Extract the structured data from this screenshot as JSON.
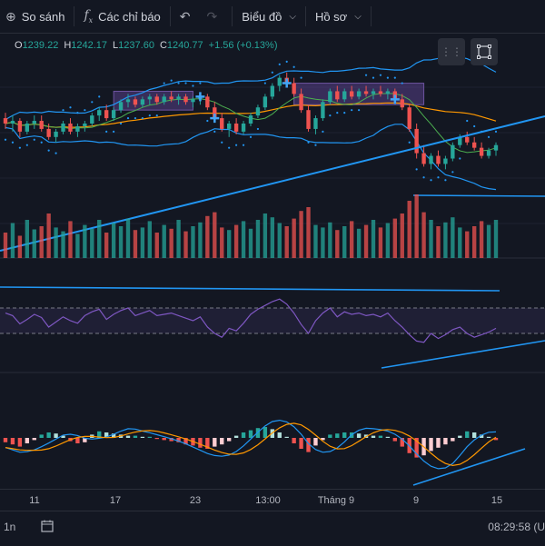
{
  "toolbar": {
    "compare_label": "So sánh",
    "compare_icon": "plus-circle-icon",
    "indicators_label": "Các chỉ báo",
    "indicators_icon": "fx-icon",
    "chart_label": "Biểu đồ",
    "profile_label": "Hồ sơ"
  },
  "ohlc": {
    "open_label": "O",
    "open": "1239.22",
    "high_label": "H",
    "high": "1242.17",
    "low_label": "L",
    "low": "1237.60",
    "close_label": "C",
    "close": "1240.77",
    "change": "+1.56 (+0.13%)"
  },
  "x_axis": [
    "11",
    "17",
    "23",
    "13:00",
    "Tháng 9",
    "9",
    "15"
  ],
  "bottom": {
    "interval": "1n",
    "time": "08:29:58 (U"
  },
  "colors": {
    "background": "#131722",
    "up": "#26a69a",
    "down": "#ef5350",
    "bollinger": "#2196f3",
    "ma_orange": "#ff9800",
    "ma_green": "#4caf50",
    "trendline": "#2196f3",
    "rsi": "#7e57c2",
    "sar": "#2196f3"
  },
  "chart_data": {
    "type": "candlestick",
    "candles": [
      [
        1251,
        1253,
        1247,
        1249
      ],
      [
        1249,
        1252,
        1246,
        1250
      ],
      [
        1250,
        1251,
        1244,
        1246
      ],
      [
        1246,
        1250,
        1245,
        1249
      ],
      [
        1249,
        1252,
        1247,
        1250
      ],
      [
        1250,
        1252,
        1246,
        1247
      ],
      [
        1247,
        1249,
        1243,
        1244
      ],
      [
        1244,
        1247,
        1242,
        1246
      ],
      [
        1246,
        1250,
        1245,
        1249
      ],
      [
        1249,
        1251,
        1245,
        1246
      ],
      [
        1246,
        1249,
        1244,
        1248
      ],
      [
        1248,
        1250,
        1246,
        1249
      ],
      [
        1249,
        1253,
        1248,
        1252
      ],
      [
        1252,
        1255,
        1250,
        1254
      ],
      [
        1254,
        1256,
        1250,
        1251
      ],
      [
        1251,
        1255,
        1250,
        1254
      ],
      [
        1254,
        1258,
        1253,
        1257
      ],
      [
        1257,
        1260,
        1255,
        1258
      ],
      [
        1258,
        1259,
        1255,
        1256
      ],
      [
        1256,
        1259,
        1255,
        1258
      ],
      [
        1258,
        1260,
        1256,
        1259
      ],
      [
        1259,
        1260,
        1256,
        1257
      ],
      [
        1257,
        1260,
        1256,
        1259
      ],
      [
        1259,
        1261,
        1257,
        1258
      ],
      [
        1258,
        1260,
        1256,
        1259
      ],
      [
        1259,
        1260,
        1256,
        1257
      ],
      [
        1257,
        1259,
        1255,
        1258
      ],
      [
        1258,
        1260,
        1256,
        1259
      ],
      [
        1259,
        1260,
        1254,
        1255
      ],
      [
        1255,
        1257,
        1250,
        1251
      ],
      [
        1251,
        1253,
        1246,
        1247
      ],
      [
        1247,
        1250,
        1244,
        1249
      ],
      [
        1249,
        1251,
        1245,
        1246
      ],
      [
        1246,
        1250,
        1245,
        1249
      ],
      [
        1249,
        1253,
        1248,
        1252
      ],
      [
        1252,
        1256,
        1251,
        1255
      ],
      [
        1255,
        1260,
        1254,
        1259
      ],
      [
        1259,
        1264,
        1258,
        1263
      ],
      [
        1263,
        1267,
        1261,
        1266
      ],
      [
        1266,
        1268,
        1263,
        1264
      ],
      [
        1264,
        1266,
        1259,
        1260
      ],
      [
        1260,
        1262,
        1253,
        1254
      ],
      [
        1254,
        1256,
        1246,
        1247
      ],
      [
        1247,
        1252,
        1245,
        1251
      ],
      [
        1251,
        1258,
        1250,
        1257
      ],
      [
        1257,
        1262,
        1256,
        1261
      ],
      [
        1261,
        1263,
        1257,
        1258
      ],
      [
        1258,
        1262,
        1257,
        1261
      ],
      [
        1261,
        1263,
        1258,
        1259
      ],
      [
        1259,
        1262,
        1258,
        1261
      ],
      [
        1261,
        1263,
        1259,
        1260
      ],
      [
        1260,
        1262,
        1258,
        1261
      ],
      [
        1261,
        1263,
        1259,
        1260
      ],
      [
        1260,
        1262,
        1258,
        1261
      ],
      [
        1261,
        1262,
        1257,
        1258
      ],
      [
        1258,
        1260,
        1254,
        1255
      ],
      [
        1255,
        1256,
        1246,
        1247
      ],
      [
        1247,
        1249,
        1236,
        1238
      ],
      [
        1238,
        1241,
        1233,
        1234
      ],
      [
        1234,
        1238,
        1232,
        1237
      ],
      [
        1237,
        1239,
        1233,
        1234
      ],
      [
        1234,
        1237,
        1232,
        1236
      ],
      [
        1236,
        1242,
        1235,
        1241
      ],
      [
        1241,
        1245,
        1240,
        1244
      ],
      [
        1244,
        1246,
        1241,
        1242
      ],
      [
        1242,
        1244,
        1239,
        1240
      ],
      [
        1240,
        1242,
        1236,
        1237
      ],
      [
        1237,
        1240,
        1236,
        1239
      ],
      [
        1239,
        1242,
        1237,
        1241
      ]
    ],
    "volume": [
      40,
      55,
      35,
      60,
      45,
      50,
      70,
      48,
      42,
      58,
      38,
      52,
      46,
      60,
      40,
      55,
      50,
      62,
      44,
      48,
      58,
      40,
      52,
      46,
      60,
      42,
      50,
      56,
      66,
      72,
      48,
      44,
      52,
      58,
      46,
      60,
      70,
      64,
      55,
      50,
      62,
      74,
      80,
      52,
      48,
      56,
      44,
      50,
      58,
      46,
      52,
      60,
      48,
      55,
      62,
      70,
      90,
      100,
      72,
      60,
      50,
      56,
      64,
      48,
      42,
      50,
      58,
      52,
      60
    ],
    "rsi": [
      62,
      58,
      45,
      52,
      60,
      55,
      40,
      48,
      56,
      50,
      46,
      58,
      64,
      68,
      52,
      60,
      66,
      70,
      58,
      62,
      66,
      58,
      60,
      62,
      58,
      54,
      50,
      56,
      40,
      30,
      24,
      38,
      34,
      46,
      60,
      68,
      74,
      80,
      84,
      76,
      62,
      44,
      30,
      50,
      62,
      70,
      56,
      64,
      60,
      62,
      58,
      60,
      56,
      62,
      50,
      40,
      28,
      18,
      16,
      30,
      22,
      28,
      36,
      40,
      30,
      24,
      28,
      32,
      38
    ],
    "macd_hist": [
      -0.4,
      -0.6,
      -0.8,
      -0.5,
      -0.2,
      0.3,
      0.5,
      0.4,
      0.2,
      -0.3,
      -0.5,
      -0.4,
      0.3,
      0.6,
      0.5,
      0.4,
      0.3,
      0.2,
      0.2,
      0.1,
      0.1,
      -0.1,
      -0.2,
      -0.3,
      -0.4,
      -0.6,
      -0.7,
      -0.9,
      -1.0,
      -0.8,
      -0.6,
      -0.3,
      0.2,
      0.5,
      0.7,
      0.9,
      1.0,
      0.8,
      0.5,
      0.1,
      -0.5,
      -1.0,
      -1.3,
      -0.7,
      -0.2,
      0.3,
      0.4,
      0.5,
      0.5,
      0.4,
      0.3,
      0.2,
      0.2,
      0.1,
      -0.3,
      -0.8,
      -1.4,
      -1.8,
      -1.6,
      -1.2,
      -0.9,
      -0.6,
      -0.3,
      0.2,
      0.6,
      0.5,
      0.3,
      0.1,
      -0.2
    ]
  }
}
